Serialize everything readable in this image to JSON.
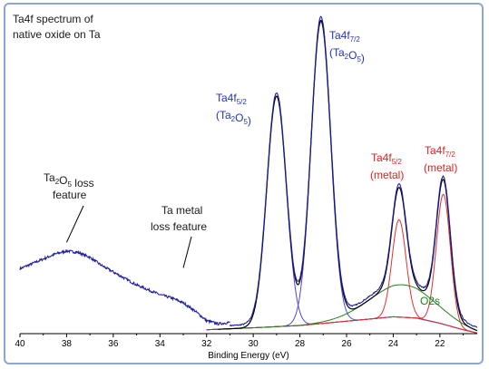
{
  "chart_data": {
    "type": "line",
    "title_lines": [
      "Ta4f spectrum of",
      "native oxide on Ta"
    ],
    "xlabel": "Binding Energy (eV)",
    "ylabel": "",
    "xlim": [
      40,
      20.4
    ],
    "x_reversed": true,
    "x_ticks": [
      40,
      38,
      36,
      34,
      32,
      30,
      28,
      26,
      24,
      22
    ],
    "grid": false,
    "colors": {
      "measured": "#1f1fa0",
      "envelope": "#000000",
      "oxide": "#4a4ad8",
      "metal": "#e03030",
      "o2s": "#208020",
      "background": "#208020",
      "label_black": "#1a1a1a",
      "label_blue": "#2233bb",
      "label_red": "#e02020",
      "label_green": "#208020"
    },
    "annotations": {
      "ta2o5_loss": {
        "line1_prefix": "Ta",
        "line1_sub1": "2",
        "line1_mid": "O",
        "line1_sub2": "5",
        "line1_suffix": " loss",
        "line2": "feature",
        "x": 38.0,
        "y": 0.27
      },
      "ta_metal_loss": {
        "line1": "Ta metal",
        "line2": "loss feature",
        "x": 33.0,
        "y": 0.18
      },
      "ta4f52_oxide": {
        "base": "Ta4f",
        "sub": "5/2",
        "line2_prefix": "(Ta",
        "line2_sub1": "2",
        "line2_mid": "O",
        "line2_sub2": "5",
        "line2_suffix": ")"
      },
      "ta4f72_oxide": {
        "base": "Ta4f",
        "sub": "7/2",
        "line2_prefix": "(Ta",
        "line2_sub1": "2",
        "line2_mid": "O",
        "line2_sub2": "5",
        "line2_suffix": ")"
      },
      "ta4f52_metal": {
        "base": "Ta4f",
        "sub": "5/2",
        "line2": "(metal)"
      },
      "ta4f72_metal": {
        "base": "Ta4f",
        "sub": "7/2",
        "line2": "(metal)"
      },
      "o2s": {
        "text": "O2s"
      }
    },
    "peaks": {
      "oxide": [
        {
          "center": 27.1,
          "height": 0.93,
          "width": 0.42
        },
        {
          "center": 29.0,
          "height": 0.71,
          "width": 0.42
        }
      ],
      "metal": [
        {
          "center": 21.85,
          "height": 0.4,
          "width": 0.3
        },
        {
          "center": 23.75,
          "height": 0.3,
          "width": 0.3
        }
      ],
      "o2s": {
        "center": 23.6,
        "height": 0.1,
        "width": 1.4
      }
    },
    "background": {
      "points": [
        [
          32.0,
          0.012
        ],
        [
          30.0,
          0.018
        ],
        [
          28.0,
          0.025
        ],
        [
          26.5,
          0.035
        ],
        [
          25.0,
          0.045
        ],
        [
          24.0,
          0.052
        ],
        [
          23.0,
          0.048
        ],
        [
          22.0,
          0.032
        ],
        [
          21.0,
          0.012
        ],
        [
          20.4,
          0.002
        ]
      ]
    },
    "spectrum_pre": [
      [
        40.0,
        0.2
      ],
      [
        39.5,
        0.215
      ],
      [
        39.0,
        0.23
      ],
      [
        38.5,
        0.245
      ],
      [
        38.0,
        0.255
      ],
      [
        37.5,
        0.25
      ],
      [
        37.0,
        0.235
      ],
      [
        36.5,
        0.21
      ],
      [
        36.0,
        0.19
      ],
      [
        35.5,
        0.17
      ],
      [
        35.0,
        0.15
      ],
      [
        34.5,
        0.135
      ],
      [
        34.0,
        0.12
      ],
      [
        33.5,
        0.11
      ],
      [
        33.0,
        0.095
      ],
      [
        32.5,
        0.07
      ],
      [
        32.0,
        0.04
      ],
      [
        31.5,
        0.03
      ],
      [
        31.0,
        0.035
      ]
    ]
  }
}
